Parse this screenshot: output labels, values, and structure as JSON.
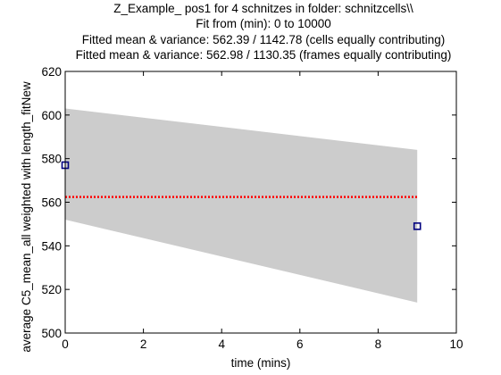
{
  "chart_data": {
    "type": "line",
    "title_lines": [
      "Z_Example_ pos1 for 4 schnitzes in folder: schnitzcells\\\\",
      "Fit from (min): 0 to 10000",
      "Fitted mean & variance: 562.39 / 1142.78 (cells equally contributing)",
      "Fitted mean & variance: 562.98 / 1130.35 (frames equally contributing)"
    ],
    "xlabel": "time (mins)",
    "ylabel": "average C5_mean_all weighted with length_fitNew",
    "xlim": [
      0,
      10
    ],
    "ylim": [
      500,
      620
    ],
    "x_ticks": [
      0,
      2,
      4,
      6,
      8,
      10
    ],
    "y_ticks": [
      500,
      520,
      540,
      560,
      580,
      600,
      620
    ],
    "grid": false,
    "band": {
      "x": [
        0,
        9
      ],
      "upper": [
        603,
        584
      ],
      "lower": [
        552,
        514
      ],
      "color": "#cccccc"
    },
    "mean_line": {
      "x": [
        0,
        9
      ],
      "y": 562.4,
      "color": "#ff0000",
      "style": "dotted"
    },
    "points": {
      "x": [
        0,
        9
      ],
      "y": [
        577,
        549
      ],
      "color": "#00007f",
      "marker": "square"
    }
  }
}
